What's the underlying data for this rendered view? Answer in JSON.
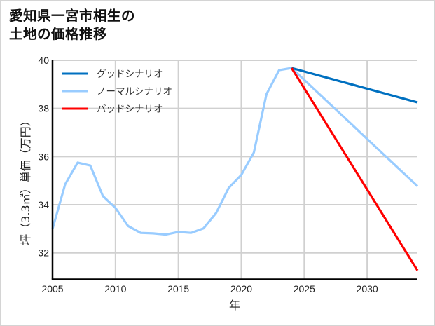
{
  "title": {
    "line1": "愛知県一宮市相生の",
    "line2": "土地の価格推移"
  },
  "axes": {
    "xlabel": "年",
    "ylabel": "坪（3.3㎡）単価（万円）",
    "x_ticks": [
      "2005",
      "2010",
      "2015",
      "2020",
      "2025",
      "2030"
    ],
    "y_ticks": [
      "40",
      "38",
      "36",
      "34",
      "32"
    ]
  },
  "legend": {
    "good": "グッドシナリオ",
    "normal": "ノーマルシナリオ",
    "bad": "バッドシナリオ"
  },
  "colors": {
    "good": "#0070c0",
    "normal": "#99ccff",
    "bad": "#ff0000",
    "grid": "#d0d0d0",
    "axis": "#000000"
  },
  "chart_data": {
    "type": "line",
    "title": "愛知県一宮市相生の土地の価格推移",
    "xlabel": "年",
    "ylabel": "坪（3.3㎡）単価（万円）",
    "xlim": [
      2005,
      2034
    ],
    "ylim": [
      30.9,
      40
    ],
    "x_ticks": [
      2005,
      2010,
      2015,
      2020,
      2025,
      2030
    ],
    "y_ticks": [
      32,
      34,
      36,
      38,
      40
    ],
    "grid": true,
    "legend_position": "upper left",
    "series": [
      {
        "name": "ノーマルシナリオ",
        "color": "#99ccff",
        "x": [
          2005,
          2006,
          2007,
          2008,
          2009,
          2010,
          2011,
          2012,
          2013,
          2014,
          2015,
          2016,
          2017,
          2018,
          2019,
          2020,
          2021,
          2022,
          2023,
          2024,
          2034
        ],
        "values": [
          33.0,
          34.85,
          35.75,
          35.63,
          34.36,
          33.87,
          33.12,
          32.83,
          32.81,
          32.76,
          32.87,
          32.83,
          33.02,
          33.66,
          34.7,
          35.24,
          36.17,
          38.59,
          39.59,
          39.68,
          34.77
        ]
      },
      {
        "name": "グッドシナリオ",
        "color": "#0070c0",
        "x": [
          2024,
          2034
        ],
        "values": [
          39.68,
          38.25
        ]
      },
      {
        "name": "バッドシナリオ",
        "color": "#ff0000",
        "x": [
          2024,
          2034
        ],
        "values": [
          39.68,
          31.27
        ]
      }
    ]
  }
}
